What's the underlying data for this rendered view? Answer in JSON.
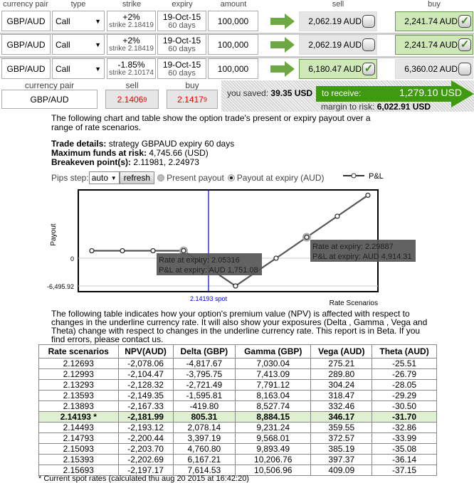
{
  "headers": {
    "pair": "currency pair",
    "type": "type",
    "strike": "strike",
    "expiry": "expiry",
    "amount": "amount",
    "sell": "sell",
    "buy": "buy"
  },
  "legs": [
    {
      "pair": "GBP/AUD",
      "type": "Call",
      "strike_pct": "+2%",
      "strike": "strike 2.18419",
      "expiry": "19-Oct-15",
      "days": "60 days",
      "amount": "100,000",
      "sell": "2,062.19 AUD",
      "buy": "2,241.74 AUD",
      "selected": "buy"
    },
    {
      "pair": "GBP/AUD",
      "type": "Call",
      "strike_pct": "+2%",
      "strike": "strike 2.18419",
      "expiry": "19-Oct-15",
      "days": "60 days",
      "amount": "100,000",
      "sell": "2,062.19 AUD",
      "buy": "2,241.74 AUD",
      "selected": "buy"
    },
    {
      "pair": "GBP/AUD",
      "type": "Call",
      "strike_pct": "-1.85%",
      "strike": "strike 2.10174",
      "expiry": "19-Oct-15",
      "days": "60 days",
      "amount": "100,000",
      "sell": "6,180.47 AUD",
      "buy": "6,360.02 AUD",
      "selected": "sell"
    }
  ],
  "quote": {
    "pair_label": "currency pair",
    "pair": "GBP/AUD",
    "sell_label": "sell",
    "buy_label": "buy",
    "sell_main": "2.1406",
    "sell_pip": "9",
    "buy_main": "2.1417",
    "buy_pip": "9"
  },
  "summary": {
    "saved_label": "you saved:",
    "saved": "39.35 USD",
    "receive_label": "to receive:",
    "receive": "1,279.10 USD",
    "margin_label": "margin to risk:",
    "margin": "6,022.91 USD"
  },
  "intro": "The following chart and table show the option trade's present or expiry payout over a range of rate scenarios.",
  "details": {
    "trade_label": "Trade details:",
    "trade": "strategy GBPAUD expiry 60 days",
    "max_label": "Maximum funds at risk:",
    "max": "4,745.66 (USD)",
    "be_label": "Breakeven point(s):",
    "be": "2.11981, 2.24973"
  },
  "controls": {
    "pips_label": "Pips step:",
    "pips_value": "auto",
    "refresh": "refresh",
    "present": "Present payout",
    "expiry": "Payout at expiry (AUD)",
    "mode": "expiry"
  },
  "chart_data": {
    "type": "line",
    "ylabel": "Payout",
    "xlabel": "Rate Scenarios",
    "legend": "P&L",
    "legend_position": "top-right",
    "y_ticks": [
      "0",
      "-6,495.92"
    ],
    "ylim": [
      -6495.92,
      15500
    ],
    "x": [
      1.8699,
      1.931,
      1.9921,
      2.05316,
      2.1568,
      2.2378,
      2.29887,
      2.3599,
      2.421
    ],
    "y": [
      1751.08,
      1751.08,
      1751.08,
      1751.08,
      -6495.92,
      0,
      4914.31,
      9828.6,
      14742.9
    ],
    "xlim": [
      1.843,
      2.441
    ],
    "spot": {
      "x": 2.14193,
      "label": "2.14193 spot"
    },
    "tooltips": [
      {
        "rate": "Rate at expiry: 2.05316",
        "pl": "P&L at expiry: AUD 1,751.08"
      },
      {
        "rate": "Rate at expiry: 2.29887",
        "pl": "P&L at expiry: AUD 4,914.31"
      }
    ],
    "colors": {
      "line": "#333333",
      "spot": "#0000ff"
    }
  },
  "table_intro": "The following table indicates how your option's premium value (NPV) is affected with respect to changes in the underline currency rate. It will also show your exposures (Delta , Gamma , Vega and Theta) change with respect to changes in the underline currency rate. This report is in Beta. If you find errors, please contact us.",
  "table": {
    "columns": [
      "Rate scenarios",
      "NPV(AUD)",
      "Delta (GBP)",
      "Gamma (GBP)",
      "Vega (AUD)",
      "Theta (AUD)"
    ],
    "rows": [
      [
        "2.12693",
        "-2,078.06",
        "-4,817.67",
        "7,030.04",
        "275.21",
        "-25.51"
      ],
      [
        "2.12993",
        "-2,104.47",
        "-3,795.75",
        "7,413.09",
        "289.80",
        "-26.79"
      ],
      [
        "2.13293",
        "-2,128.32",
        "-2,721.49",
        "7,791.12",
        "304.24",
        "-28.05"
      ],
      [
        "2.13593",
        "-2,149.35",
        "-1,595.81",
        "8,163.04",
        "318.47",
        "-29.29"
      ],
      [
        "2.13893",
        "-2,167.33",
        "-419.80",
        "8,527.74",
        "332.46",
        "-30.50"
      ],
      [
        "2.14193 *",
        "-2,181.99",
        "805.31",
        "8,884.15",
        "346.17",
        "-31.70"
      ],
      [
        "2.14493",
        "-2,193.12",
        "2,078.14",
        "9,231.24",
        "359.55",
        "-32.86"
      ],
      [
        "2.14793",
        "-2,200.44",
        "3,397.19",
        "9,568.01",
        "372.57",
        "-33.99"
      ],
      [
        "2.15093",
        "-2,203.70",
        "4,760.80",
        "9,893.49",
        "385.19",
        "-35.08"
      ],
      [
        "2.15393",
        "-2,202.69",
        "6,167.21",
        "10,206.76",
        "397.37",
        "-36.14"
      ],
      [
        "2.15693",
        "-2,197.17",
        "7,614.53",
        "10,506.96",
        "409.09",
        "-37.15"
      ]
    ],
    "spot_row": 5
  },
  "footnote": "* Current spot rates (calculated thu aug 20 2015 at 16:42:20)"
}
